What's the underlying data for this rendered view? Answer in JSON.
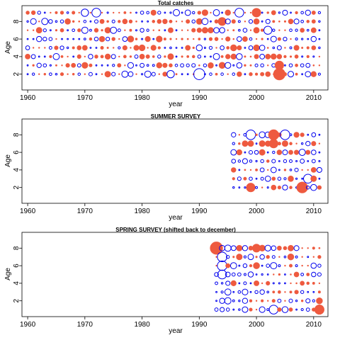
{
  "chart_data": [
    {
      "type": "scatter",
      "title": "Total catches",
      "xlabel": "year",
      "ylabel": "Age",
      "xlim": [
        1959,
        2012.5
      ],
      "ylim": [
        0.2,
        9.8
      ],
      "xticks": [
        "1960",
        "1970",
        "1980",
        "1990",
        "2000",
        "2010"
      ],
      "yticks": [
        "2",
        "4",
        "6",
        "8"
      ],
      "years": [
        1960,
        2011
      ],
      "ages": [
        2,
        3,
        4,
        5,
        6,
        7,
        8,
        9
      ],
      "seed": 11,
      "big_points": [
        {
          "year": 1990,
          "age": 2,
          "sign": "neg",
          "value": 3.0
        },
        {
          "year": 2004,
          "age": 2,
          "sign": "pos",
          "value": 3.2
        },
        {
          "year": 2004,
          "age": 3,
          "sign": "pos",
          "value": 2.4
        },
        {
          "year": 1972,
          "age": 9,
          "sign": "neg",
          "value": 2.4
        },
        {
          "year": 1970,
          "age": 9,
          "sign": "neg",
          "value": 2.0
        },
        {
          "year": 1997,
          "age": 9,
          "sign": "neg",
          "value": 2.4
        },
        {
          "year": 2000,
          "age": 9,
          "sign": "pos",
          "value": 2.4
        },
        {
          "year": 1994,
          "age": 8,
          "sign": "pos",
          "value": 2.2
        },
        {
          "year": 2002,
          "age": 7,
          "sign": "neg",
          "value": 2.2
        },
        {
          "year": 1985,
          "age": 2,
          "sign": "neg",
          "value": 2.0
        }
      ]
    },
    {
      "type": "scatter",
      "title": "SUMMER SURVEY",
      "xlabel": "year",
      "ylabel": "Age",
      "xlim": [
        1959,
        2012.5
      ],
      "ylim": [
        0.2,
        9.8
      ],
      "xticks": [
        "1960",
        "1970",
        "1980",
        "1990",
        "2000",
        "2010"
      ],
      "yticks": [
        "2",
        "4",
        "6",
        "8"
      ],
      "years": [
        1996,
        2011
      ],
      "ages": [
        2,
        3,
        4,
        5,
        6,
        7,
        8
      ],
      "seed": 23,
      "big_points": [
        {
          "year": 1999,
          "age": 8,
          "sign": "neg",
          "value": 2.6
        },
        {
          "year": 2003,
          "age": 8,
          "sign": "pos",
          "value": 2.8
        },
        {
          "year": 2005,
          "age": 8,
          "sign": "neg",
          "value": 2.6
        },
        {
          "year": 2008,
          "age": 2,
          "sign": "pos",
          "value": 3.0
        },
        {
          "year": 2009,
          "age": 3,
          "sign": "neg",
          "value": 2.4
        },
        {
          "year": 1999,
          "age": 2,
          "sign": "pos",
          "value": 2.4
        },
        {
          "year": 2003,
          "age": 7,
          "sign": "pos",
          "value": 2.4
        }
      ]
    },
    {
      "type": "scatter",
      "title": "SPRING SURVEY (shifted back to december)",
      "xlabel": "year",
      "ylabel": "Age",
      "xlim": [
        1959,
        2012.5
      ],
      "ylim": [
        0.2,
        9.8
      ],
      "xticks": [
        "1960",
        "1970",
        "1980",
        "1990",
        "2000",
        "2010"
      ],
      "yticks": [
        "2",
        "4",
        "6",
        "8"
      ],
      "years": [
        1993,
        2011
      ],
      "ages": [
        1,
        2,
        3,
        4,
        5,
        6,
        7,
        8
      ],
      "seed": 37,
      "big_points": [
        {
          "year": 1993,
          "age": 8,
          "sign": "pos",
          "value": 3.4
        },
        {
          "year": 1994,
          "age": 7,
          "sign": "neg",
          "value": 2.6
        },
        {
          "year": 1994,
          "age": 6,
          "sign": "neg",
          "value": 2.6
        },
        {
          "year": 1994,
          "age": 5,
          "sign": "neg",
          "value": 2.4
        },
        {
          "year": 2003,
          "age": 1,
          "sign": "neg",
          "value": 2.4
        },
        {
          "year": 2011,
          "age": 1,
          "sign": "pos",
          "value": 2.6
        },
        {
          "year": 2000,
          "age": 8,
          "sign": "pos",
          "value": 2.2
        }
      ]
    }
  ]
}
